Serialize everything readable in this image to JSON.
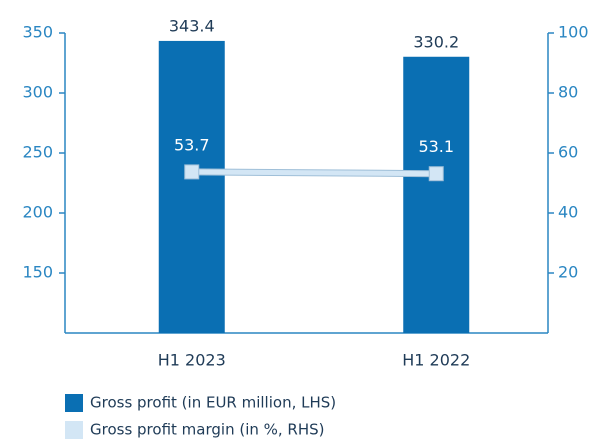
{
  "chart_data": {
    "type": "bar",
    "categories": [
      "H1 2023",
      "H1 2022"
    ],
    "series": [
      {
        "name": "Gross profit (in EUR million, LHS)",
        "color": "#0a6fb3",
        "type": "bar",
        "values": [
          343.4,
          330.2
        ]
      },
      {
        "name": "Gross profit margin (in %, RHS)",
        "color": "#d3e6f5",
        "type": "line",
        "axis": "y2",
        "values": [
          53.7,
          53.1
        ]
      }
    ],
    "ylim": [
      100,
      350
    ],
    "yticks": [
      150,
      200,
      250,
      300,
      350
    ],
    "y2lim": [
      0,
      100
    ],
    "y2ticks": [
      20,
      40,
      60,
      80,
      100
    ]
  }
}
